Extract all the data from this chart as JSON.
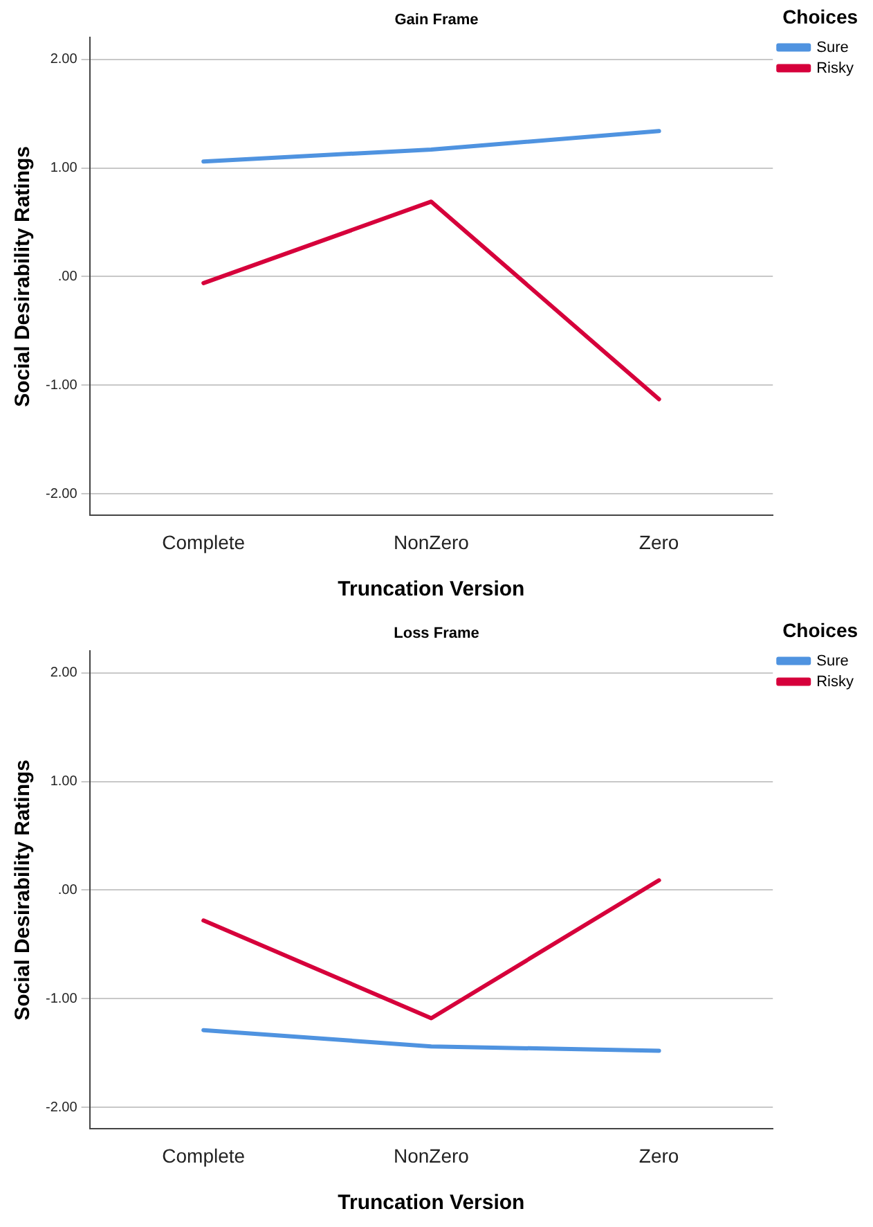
{
  "chart_data": [
    {
      "type": "line",
      "title": "Gain Frame",
      "xlabel": "Truncation Version",
      "ylabel": "Social Desirability Ratings",
      "legend_title": "Choices",
      "categories": [
        "Complete",
        "NonZero",
        "Zero"
      ],
      "series": [
        {
          "name": "Sure",
          "color": "#4f93e0",
          "values": [
            1.06,
            1.17,
            1.34
          ]
        },
        {
          "name": "Risky",
          "color": "#d6003b",
          "values": [
            -0.06,
            0.69,
            -1.13
          ]
        }
      ],
      "ylim": [
        -2.2,
        2.2
      ],
      "yticks": [
        {
          "value": -2,
          "label": "-2.00"
        },
        {
          "value": -1,
          "label": "-1.00"
        },
        {
          "value": 0,
          "label": ".00"
        },
        {
          "value": 1,
          "label": "1.00"
        },
        {
          "value": 2,
          "label": "2.00"
        }
      ],
      "grid": "y",
      "legend": "top right",
      "marker": "none",
      "line_style": "solid"
    },
    {
      "type": "line",
      "title": "Loss Frame",
      "xlabel": "Truncation Version",
      "ylabel": "Social Desirability Ratings",
      "legend_title": "Choices",
      "categories": [
        "Complete",
        "NonZero",
        "Zero"
      ],
      "series": [
        {
          "name": "Sure",
          "color": "#4f93e0",
          "values": [
            -1.29,
            -1.44,
            -1.48
          ]
        },
        {
          "name": "Risky",
          "color": "#d6003b",
          "values": [
            -0.28,
            -1.18,
            0.09
          ]
        }
      ],
      "ylim": [
        -2.2,
        2.2
      ],
      "yticks": [
        {
          "value": -2,
          "label": "-2.00"
        },
        {
          "value": -1,
          "label": "-1.00"
        },
        {
          "value": 0,
          "label": ".00"
        },
        {
          "value": 1,
          "label": "1.00"
        },
        {
          "value": 2,
          "label": "2.00"
        }
      ],
      "grid": "y",
      "legend": "top right",
      "marker": "none",
      "line_style": "solid"
    }
  ]
}
